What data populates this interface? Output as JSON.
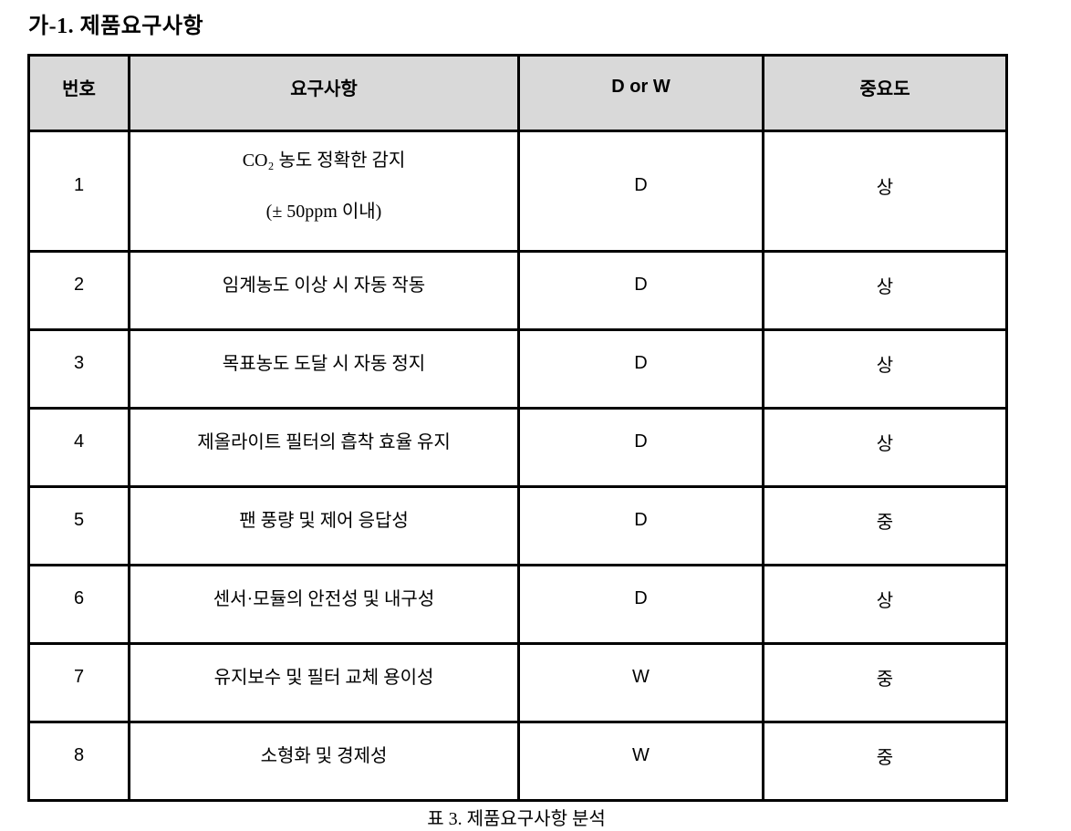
{
  "page": {
    "title": "가-1. 제품요구사항",
    "caption": "표 3. 제품요구사항 분석"
  },
  "table": {
    "headers": [
      "번호",
      "요구사항",
      "D or W",
      "중요도"
    ],
    "rows": [
      {
        "no": "1",
        "requirement": [
          "CO₂ 농도 정확한 감지",
          "(± 50ppm 이내)"
        ],
        "d_or_w": "D",
        "importance": "상"
      },
      {
        "no": "2",
        "requirement": [
          "임계농도 이상 시 자동 작동"
        ],
        "d_or_w": "D",
        "importance": "상"
      },
      {
        "no": "3",
        "requirement": [
          "목표농도 도달 시 자동 정지"
        ],
        "d_or_w": "D",
        "importance": "상"
      },
      {
        "no": "4",
        "requirement": [
          "제올라이트 필터의 흡착 효율 유지"
        ],
        "d_or_w": "D",
        "importance": "상"
      },
      {
        "no": "5",
        "requirement": [
          "팬 풍량 및 제어 응답성"
        ],
        "d_or_w": "D",
        "importance": "중"
      },
      {
        "no": "6",
        "requirement": [
          "센서·모듈의 안전성 및 내구성"
        ],
        "d_or_w": "D",
        "importance": "상"
      },
      {
        "no": "7",
        "requirement": [
          "유지보수 및 필터 교체 용이성"
        ],
        "d_or_w": "W",
        "importance": "중"
      },
      {
        "no": "8",
        "requirement": [
          "소형화 및 경제성"
        ],
        "d_or_w": "W",
        "importance": "중"
      }
    ],
    "colors": {
      "header_bg": "#d9d9d9",
      "border": "#000000",
      "text": "#000000",
      "page_bg": "#ffffff"
    }
  }
}
